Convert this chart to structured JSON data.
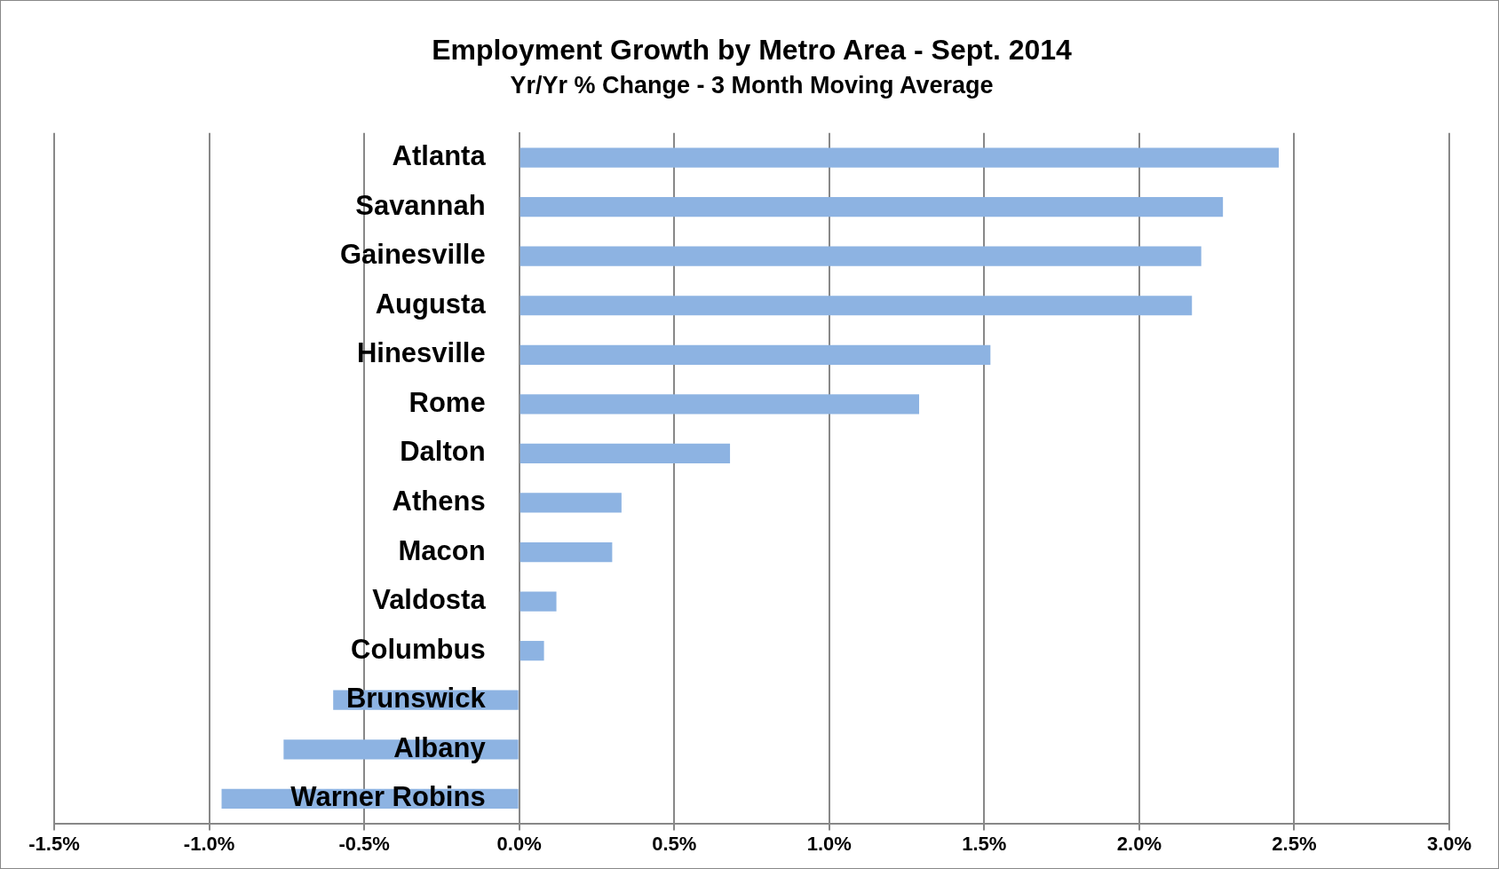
{
  "chart_data": {
    "type": "bar",
    "orientation": "horizontal",
    "title": "Employment Growth by Metro Area - Sept. 2014",
    "subtitle": "Yr/Yr % Change - 3 Month Moving Average",
    "categories": [
      "Atlanta",
      "Savannah",
      "Gainesville",
      "Augusta",
      "Hinesville",
      "Rome",
      "Dalton",
      "Athens",
      "Macon",
      "Valdosta",
      "Columbus",
      "Brunswick",
      "Albany",
      "Warner Robins"
    ],
    "values": [
      2.45,
      2.27,
      2.2,
      2.17,
      1.52,
      1.29,
      0.68,
      0.33,
      0.3,
      0.12,
      0.08,
      -0.6,
      -0.76,
      -0.96
    ],
    "color": "#8db3e2",
    "xlim": [
      -1.5,
      3.0
    ],
    "xticks": [
      {
        "value": -1.5,
        "label": "-1.5%"
      },
      {
        "value": -1.0,
        "label": "-1.0%"
      },
      {
        "value": -0.5,
        "label": "-0.5%"
      },
      {
        "value": 0,
        "label": "0.0%"
      },
      {
        "value": 0.5,
        "label": "0.5%"
      },
      {
        "value": 1.0,
        "label": "1.0%"
      },
      {
        "value": 1.5,
        "label": "1.5%"
      },
      {
        "value": 2.0,
        "label": "2.0%"
      },
      {
        "value": 2.5,
        "label": "2.5%"
      },
      {
        "value": 3.0,
        "label": "3.0%"
      }
    ],
    "grid": "x",
    "legend": false
  }
}
